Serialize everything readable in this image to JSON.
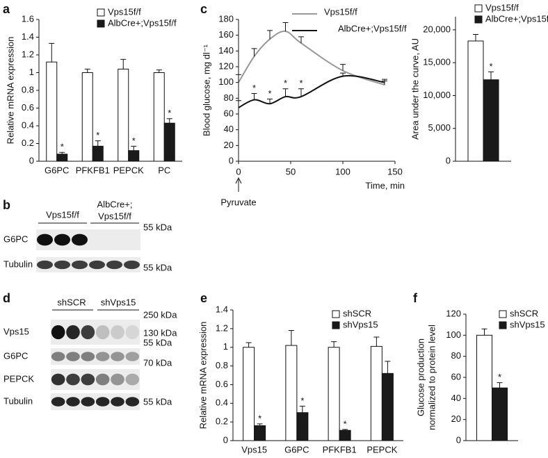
{
  "panels": [
    "a",
    "b",
    "c",
    "d",
    "e",
    "f"
  ],
  "chart_data": [
    {
      "type": "bar",
      "ylabel": "Relative mRNA expression",
      "categories": [
        "G6PC",
        "PFKFB1",
        "PEPCK",
        "PC"
      ],
      "series": [
        {
          "name": "Vps15f/f",
          "color": "#ffffff",
          "values": [
            1.12,
            1.0,
            1.04,
            1.0
          ],
          "errors": [
            0.21,
            0.04,
            0.11,
            0.03
          ],
          "significant": [
            false,
            false,
            false,
            false
          ]
        },
        {
          "name": "AlbCre+;Vps15f/f",
          "color": "#1a1a1a",
          "values": [
            0.08,
            0.17,
            0.12,
            0.43
          ],
          "errors": [
            0.02,
            0.06,
            0.05,
            0.05
          ],
          "significant": [
            true,
            true,
            true,
            true
          ]
        }
      ],
      "significance_mark": "*",
      "ylim": [
        0,
        1.6
      ],
      "yticks": [
        0,
        0.2,
        0.4,
        0.6,
        0.8,
        1,
        1.2,
        1.4,
        1.6
      ],
      "legend": "top"
    },
    {
      "type": "line",
      "ylabel": "Blood glucose, mg dl⁻¹",
      "xlabel": "Time, min",
      "x": [
        0,
        15,
        30,
        45,
        60,
        100,
        140
      ],
      "series": [
        {
          "name": "Vps15f/f",
          "color": "#999999",
          "values": [
            100,
            133,
            155,
            165,
            150,
            115,
            97
          ],
          "errors": [
            10,
            10,
            11,
            11,
            8,
            8,
            5
          ],
          "significant": [
            false,
            false,
            false,
            false,
            false,
            false,
            false
          ]
        },
        {
          "name": "AlbCre+;Vps15f/f",
          "color": "#111111",
          "values": [
            68,
            78,
            73,
            82,
            82,
            108,
            100
          ],
          "errors": [
            9,
            8,
            6,
            10,
            10,
            4,
            4
          ],
          "significant": [
            false,
            true,
            true,
            true,
            true,
            false,
            false
          ]
        }
      ],
      "significance_mark": "*",
      "annotation": "Pyruvate",
      "xlim": [
        0,
        150
      ],
      "xticks": [
        0,
        50,
        100,
        150
      ],
      "ylim": [
        0,
        180
      ],
      "yticks": [
        0,
        20,
        40,
        60,
        80,
        100,
        120,
        140,
        160,
        180
      ],
      "legend": "top"
    },
    {
      "type": "bar",
      "ylabel": "Area under the curve, AU",
      "categories": [
        null
      ],
      "series": [
        {
          "name": "Vps15f/f",
          "color": "#ffffff",
          "values": [
            18300
          ],
          "errors": [
            1000
          ],
          "significant": [
            false
          ]
        },
        {
          "name": "AlbCre+;Vps15f/f",
          "color": "#1a1a1a",
          "values": [
            12400
          ],
          "errors": [
            1200
          ],
          "significant": [
            true
          ]
        }
      ],
      "significance_mark": "*",
      "ylim": [
        0,
        22000
      ],
      "yticks": [
        0,
        {
          "value": 5000,
          "label": "5,000"
        },
        {
          "value": 10000,
          "label": "10,000"
        },
        {
          "value": 15000,
          "label": "15,000"
        },
        {
          "value": 20000,
          "label": "20,000"
        }
      ],
      "legend": "top"
    },
    {
      "type": "bar",
      "ylabel": "Relative mRNA expression",
      "categories": [
        "Vps15",
        "G6PC",
        "PFKFB1",
        "PEPCK"
      ],
      "series": [
        {
          "name": "shSCR",
          "color": "#ffffff",
          "values": [
            1.0,
            1.02,
            1.0,
            1.01
          ],
          "errors": [
            0.05,
            0.16,
            0.06,
            0.1
          ],
          "significant": [
            false,
            false,
            false,
            false
          ]
        },
        {
          "name": "shVps15",
          "color": "#1a1a1a",
          "values": [
            0.16,
            0.3,
            0.11,
            0.72
          ],
          "errors": [
            0.02,
            0.07,
            0.01,
            0.13
          ],
          "significant": [
            true,
            true,
            true,
            false
          ]
        }
      ],
      "significance_mark": "*",
      "ylim": [
        0,
        1.4
      ],
      "yticks": [
        0,
        0.2,
        0.4,
        0.6,
        0.8,
        1,
        1.2,
        1.4
      ],
      "legend": "top right"
    },
    {
      "type": "bar",
      "ylabel": [
        "Glucose production",
        "normalized to protein level"
      ],
      "categories": [
        null
      ],
      "series": [
        {
          "name": "shSCR",
          "color": "#ffffff",
          "values": [
            100
          ],
          "errors": [
            6
          ],
          "significant": [
            false
          ]
        },
        {
          "name": "shVps15",
          "color": "#1a1a1a",
          "values": [
            50
          ],
          "errors": [
            5
          ],
          "significant": [
            true
          ]
        }
      ],
      "significance_mark": "*",
      "ylim": [
        0,
        120
      ],
      "yticks": [
        0,
        20,
        40,
        60,
        80,
        100,
        120
      ],
      "legend": "top right"
    }
  ],
  "blot_b": {
    "groups": [
      "Vps15f/f",
      [
        "AlbCre+;",
        "Vps15f/f"
      ]
    ],
    "rows": [
      "G6PC",
      "Tubulin"
    ],
    "markers": [
      "55 kDa",
      "55 kDa"
    ]
  },
  "blot_d": {
    "groups": [
      "shSCR",
      "shVps15"
    ],
    "rows": [
      "Vps15",
      "G6PC",
      "PEPCK",
      "Tubulin"
    ],
    "markers": [
      "250 kDa",
      "130 kDa",
      "55 kDa",
      "70 kDa",
      "55 kDa"
    ]
  }
}
